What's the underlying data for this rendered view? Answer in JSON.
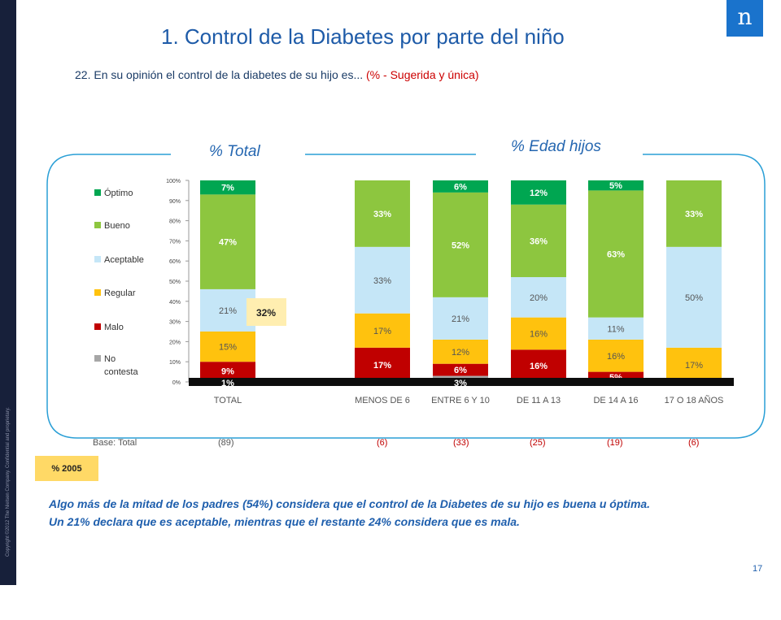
{
  "title": "1. Control de la Diabetes por parte del niño",
  "subtitle": {
    "text": "22. En su opinión el control de la diabetes de su hijo es...",
    "note": "(% - Sugerida y única)"
  },
  "logo_text": "n",
  "copyright": "Copyright ©2012 The Nielsen Company. Confidential and proprietary.",
  "panels": {
    "total": "% Total",
    "edad": "% Edad hijos"
  },
  "legend": {
    "items": [
      {
        "label": "Óptimo",
        "color": "#00a651"
      },
      {
        "label": "Bueno",
        "color": "#8dc63f"
      },
      {
        "label": "Aceptable",
        "color": "#c5e6f7"
      },
      {
        "label": "Regular",
        "color": "#ffc20e"
      },
      {
        "label": "Malo",
        "color": "#c00000"
      },
      {
        "label": "No contesta",
        "color": "#a6a6a6"
      }
    ]
  },
  "chart_data": {
    "type": "bar",
    "stacked": true,
    "ylim": [
      0,
      100
    ],
    "y_ticks": [
      "0%",
      "10%",
      "20%",
      "30%",
      "40%",
      "50%",
      "60%",
      "70%",
      "80%",
      "90%",
      "100%"
    ],
    "categories": [
      "TOTAL",
      "MENOS DE 6",
      "ENTRE 6 Y 10",
      "DE 11  A 13",
      "DE 14  A 16",
      "17 O 18 AÑOS"
    ],
    "series": [
      {
        "name": "No contesta",
        "color": "#a6a6a6",
        "values": [
          1,
          0,
          3,
          0,
          0,
          0
        ],
        "labels": [
          "1%",
          "",
          "3%",
          "",
          "",
          ""
        ]
      },
      {
        "name": "Malo",
        "color": "#c00000",
        "values": [
          9,
          17,
          6,
          16,
          5,
          0
        ],
        "labels": [
          "9%",
          "17%",
          "6%",
          "16%",
          "5%",
          ""
        ]
      },
      {
        "name": "Regular",
        "color": "#ffc20e",
        "values": [
          15,
          17,
          12,
          16,
          16,
          17
        ],
        "labels": [
          "15%",
          "17%",
          "12%",
          "16%",
          "16%",
          "17%"
        ]
      },
      {
        "name": "Aceptable",
        "color": "#c5e6f7",
        "values": [
          21,
          33,
          21,
          20,
          11,
          50
        ],
        "labels": [
          "21%",
          "33%",
          "21%",
          "20%",
          "11%",
          "50%"
        ]
      },
      {
        "name": "Bueno",
        "color": "#8dc63f",
        "values": [
          47,
          33,
          52,
          36,
          63,
          33
        ],
        "labels": [
          "47%",
          "33%",
          "52%",
          "36%",
          "63%",
          "33%"
        ]
      },
      {
        "name": "Óptimo",
        "color": "#00a651",
        "values": [
          7,
          0,
          6,
          12,
          5,
          0
        ],
        "labels": [
          "7%",
          "",
          "6%",
          "12%",
          "5%",
          ""
        ]
      }
    ],
    "comparison_2005_total": "32%"
  },
  "base": {
    "label": "Base: Total",
    "values": [
      "(89)",
      "(6)",
      "(33)",
      "(25)",
      "(19)",
      "(6)"
    ]
  },
  "badge": "% 2005",
  "conclusion": [
    "Algo más de la mitad de los padres (54%) considera que el control de la Diabetes de su hijo es buena u óptima.",
    "Un 21% declara que es aceptable, mientras que el restante 24% considera que es mala."
  ],
  "page_number": "17"
}
